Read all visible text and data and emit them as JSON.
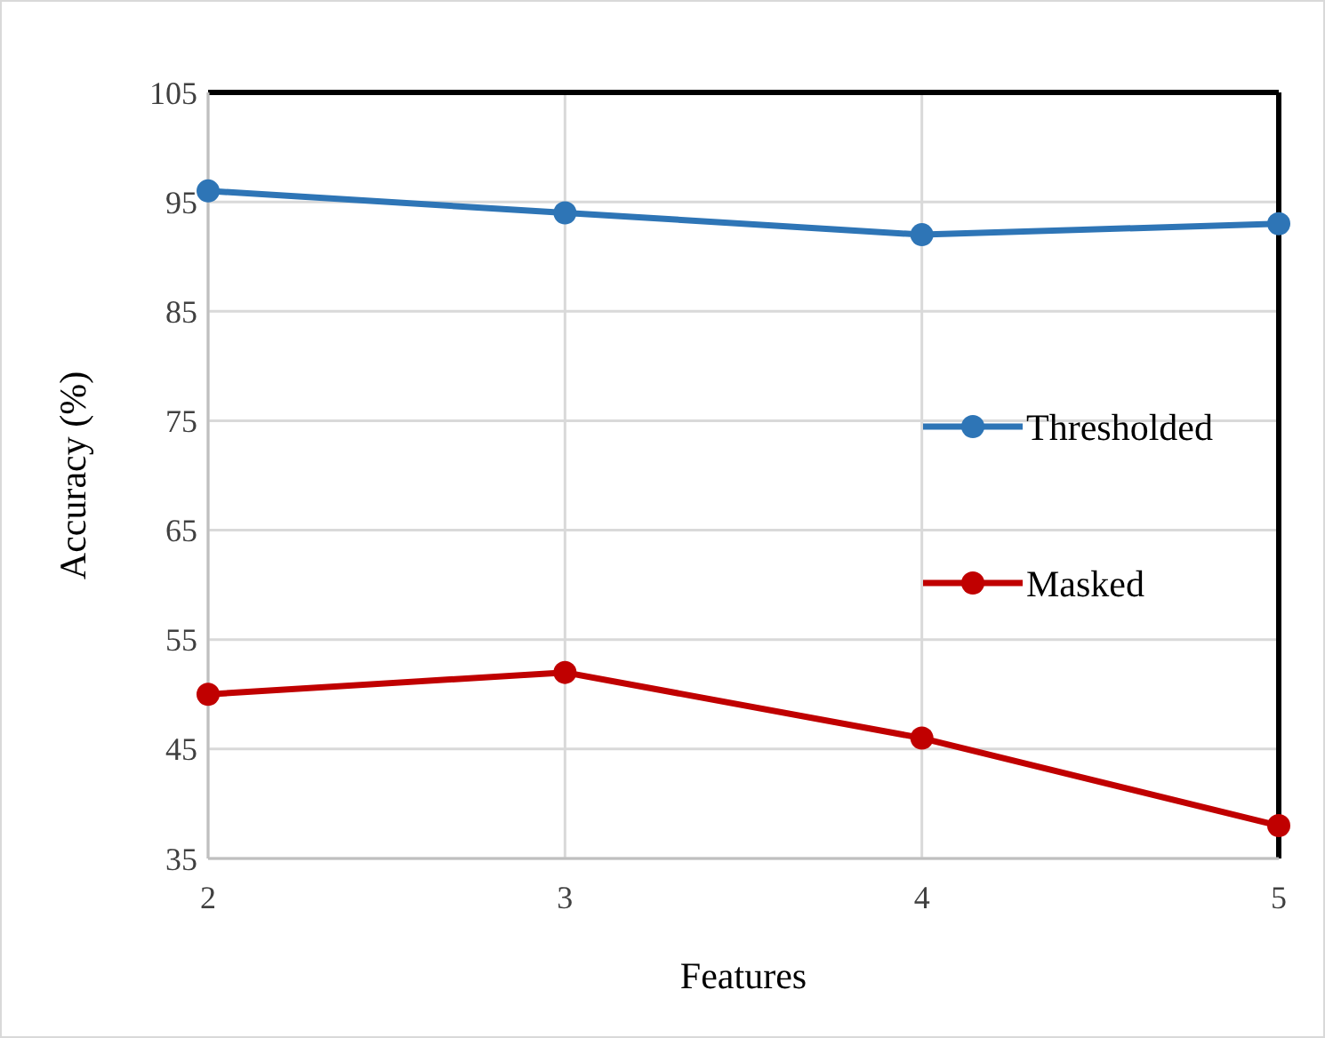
{
  "chart_data": {
    "type": "line",
    "xlabel": "Features",
    "ylabel": "Accuracy (%)",
    "x": [
      2,
      3,
      4,
      5
    ],
    "xlim": [
      2,
      5
    ],
    "xticks": [
      2,
      3,
      4,
      5
    ],
    "ylim": [
      35,
      105
    ],
    "yticks": [
      35,
      45,
      55,
      65,
      75,
      85,
      95,
      105
    ],
    "grid": true,
    "legend": "right",
    "marker": "circle",
    "line_style": "solid",
    "series": [
      {
        "name": "Thresholded",
        "color": "#2e75b6",
        "values": [
          96,
          94,
          92,
          93
        ]
      },
      {
        "name": "Masked",
        "color": "#c00000",
        "values": [
          50,
          52,
          46,
          38
        ]
      }
    ]
  }
}
